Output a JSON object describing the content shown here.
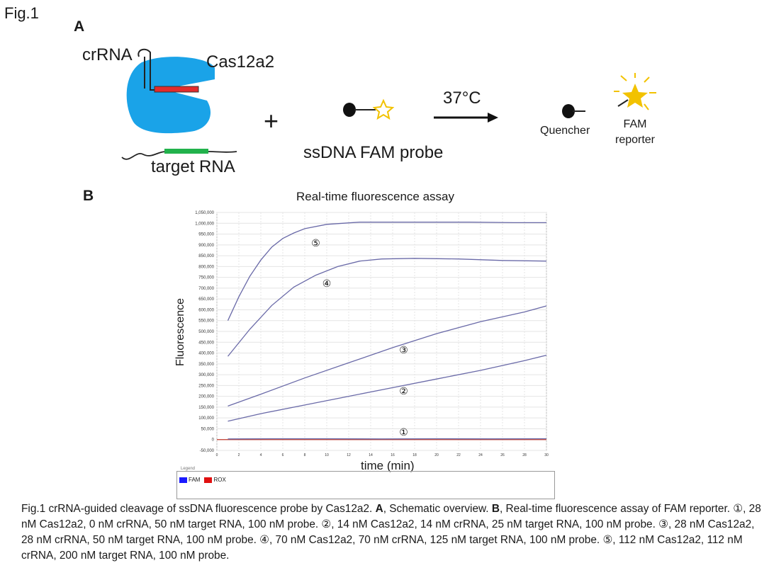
{
  "figure_label": "Fig.1",
  "panel_a": {
    "letter": "A",
    "crrna": "crRNA",
    "cas": "Cas12a2",
    "target": "target RNA",
    "plus": "+",
    "probe": "ssDNA FAM probe",
    "temperature": "37°C",
    "quencher": "Quencher",
    "fam_line1": "FAM",
    "fam_line2": "reporter",
    "colors": {
      "cas_body": "#1aa3e8",
      "crrna_bar": "#e32b2b",
      "target_bar": "#22b24c",
      "star": "#f2c200"
    }
  },
  "panel_b": {
    "letter": "B",
    "legend_title": "Legend",
    "legend_fam": "FAM",
    "legend_rox": "ROX",
    "legend_colors": {
      "fam": "#1a1aff",
      "rox": "#e01010"
    }
  },
  "chart_data": {
    "type": "line",
    "title": "Real-time fluorescence assay",
    "xlabel": "time (min)",
    "ylabel": "Fluorescence",
    "xlim": [
      0,
      30
    ],
    "ylim": [
      -50000,
      1050000
    ],
    "grid": true,
    "x_ticks": [
      0,
      2,
      4,
      6,
      8,
      10,
      12,
      14,
      16,
      18,
      20,
      22,
      24,
      26,
      28,
      30
    ],
    "y_ticks": [
      -50000,
      0,
      50000,
      100000,
      150000,
      200000,
      250000,
      300000,
      350000,
      400000,
      450000,
      500000,
      550000,
      600000,
      650000,
      700000,
      750000,
      800000,
      850000,
      900000,
      950000,
      1000000,
      1050000
    ],
    "y_tick_labels": [
      "-50,000",
      "0",
      "50,000",
      "100,000",
      "150,000",
      "200,000",
      "250,000",
      "300,000",
      "350,000",
      "400,000",
      "450,000",
      "500,000",
      "550,000",
      "600,000",
      "650,000",
      "700,000",
      "750,000",
      "800,000",
      "850,000",
      "900,000",
      "950,000",
      "1,000,000",
      "1,050,000"
    ],
    "series_color": "#6a6aa8",
    "baseline_color": "#c0392b",
    "series": [
      {
        "label": "①",
        "label_at": [
          17,
          35000
        ],
        "points": [
          [
            1,
            3000
          ],
          [
            5,
            4000
          ],
          [
            10,
            4000
          ],
          [
            15,
            3000
          ],
          [
            20,
            4000
          ],
          [
            25,
            3500
          ],
          [
            30,
            4000
          ]
        ]
      },
      {
        "label": "②",
        "label_at": [
          17,
          225000
        ],
        "points": [
          [
            1,
            85000
          ],
          [
            4,
            120000
          ],
          [
            8,
            160000
          ],
          [
            12,
            200000
          ],
          [
            16,
            240000
          ],
          [
            20,
            280000
          ],
          [
            24,
            320000
          ],
          [
            28,
            365000
          ],
          [
            30,
            390000
          ]
        ]
      },
      {
        "label": "③",
        "label_at": [
          17,
          415000
        ],
        "points": [
          [
            1,
            155000
          ],
          [
            4,
            210000
          ],
          [
            8,
            285000
          ],
          [
            12,
            355000
          ],
          [
            16,
            425000
          ],
          [
            20,
            490000
          ],
          [
            24,
            545000
          ],
          [
            28,
            590000
          ],
          [
            30,
            618000
          ]
        ]
      },
      {
        "label": "④",
        "label_at": [
          10,
          723000
        ],
        "points": [
          [
            1,
            385000
          ],
          [
            3,
            510000
          ],
          [
            5,
            620000
          ],
          [
            7,
            705000
          ],
          [
            9,
            760000
          ],
          [
            11,
            800000
          ],
          [
            13,
            825000
          ],
          [
            15,
            835000
          ],
          [
            18,
            838000
          ],
          [
            22,
            835000
          ],
          [
            26,
            828000
          ],
          [
            30,
            825000
          ]
        ]
      },
      {
        "label": "⑤",
        "label_at": [
          9,
          910000
        ],
        "points": [
          [
            1,
            550000
          ],
          [
            2,
            660000
          ],
          [
            3,
            755000
          ],
          [
            4,
            830000
          ],
          [
            5,
            890000
          ],
          [
            6,
            930000
          ],
          [
            7,
            955000
          ],
          [
            8,
            975000
          ],
          [
            10,
            995000
          ],
          [
            13,
            1005000
          ],
          [
            18,
            1005000
          ],
          [
            23,
            1005000
          ],
          [
            27,
            1003000
          ],
          [
            30,
            1003000
          ]
        ]
      }
    ]
  },
  "caption": {
    "p1": "Fig.1 crRNA-guided cleavage of ssDNA fluorescence probe by Cas12a2. ",
    "a": "A",
    "p2": ", Schematic overview. ",
    "b": "B",
    "p3": ", Real-time fluorescence assay of FAM reporter.  ①, 28 nM Cas12a2, 0 nM crRNA, 50 nM target RNA, 100 nM probe. ②, 14 nM Cas12a2, 14 nM crRNA, 25 nM target RNA, 100 nM probe. ③, 28 nM Cas12a2, 28 nM crRNA, 50 nM target RNA, 100 nM probe. ④, 70 nM Cas12a2, 70 nM crRNA, 125 nM target RNA, 100 nM probe. ⑤, 112 nM Cas12a2, 112 nM crRNA, 200 nM target RNA, 100 nM probe."
  }
}
